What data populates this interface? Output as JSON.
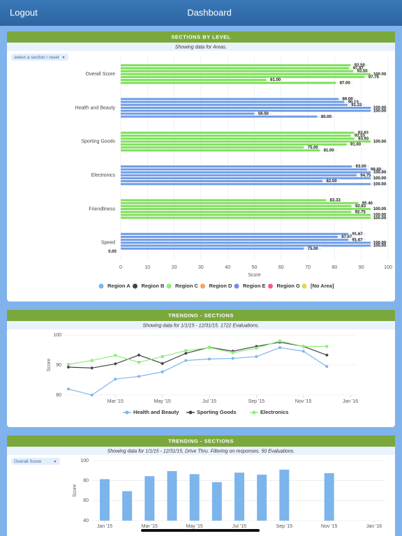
{
  "header": {
    "left_button": "Logout",
    "title": "Dashboard"
  },
  "chart_data": [
    {
      "type": "hbar",
      "title": "SECTIONS BY LEVEL",
      "subtitle": "Showing data for Areas.",
      "selector": "select a section / reset",
      "categories": [
        "Overall Score",
        "Health and Beauty",
        "Sporting Goods",
        "Electronics",
        "Friendliness",
        "Speed"
      ],
      "category_colors": [
        "#7ee05a",
        "#6f9ce6",
        "#7ee05a",
        "#6f9ce6",
        "#7ee05a",
        "#6f9ce6"
      ],
      "series": [
        {
          "name": "Region A",
          "color": "#7cb5ec",
          "values": [
            92.5,
            88,
            93.83,
            93,
            83.33,
            91.67
          ],
          "value_labels": [
            "92.50",
            "88.00",
            "93.83",
            "93.00",
            "83.33",
            "91.67"
          ]
        },
        {
          "name": "Region B",
          "color": "#434348",
          "values": [
            91.97,
            90.13,
            92.53,
            98.6,
            95.4,
            87.67
          ],
          "value_labels": [
            "91.97",
            "90.13",
            "92.53",
            "98.60",
            "95.40",
            "87.67"
          ]
        },
        {
          "name": "Region C",
          "color": "#90ed7d",
          "values": [
            93.5,
            91.33,
            93.93,
            100,
            92.83,
            91.67
          ],
          "value_labels": [
            "93.50",
            "91.33",
            "93.93",
            "100.00",
            "92.83",
            "91.67"
          ]
        },
        {
          "name": "Region D",
          "color": "#f7a35c",
          "values": [
            100,
            100,
            100,
            94.75,
            100,
            100
          ],
          "value_labels": [
            "100.00",
            "100.00",
            "100.00",
            "94.75",
            "100.00",
            "100.00"
          ]
        },
        {
          "name": "Region E",
          "color": "#8085e9",
          "values": [
            97.75,
            100,
            91,
            100,
            92.75,
            100
          ],
          "value_labels": [
            "97.75",
            "100.00",
            "91.00",
            "100.00",
            "92.75",
            "100.00"
          ]
        },
        {
          "name": "Region G",
          "color": "#f15c80",
          "values": [
            61,
            56.5,
            75,
            82,
            100,
            75
          ],
          "value_labels": [
            "61.00",
            "56.50",
            "75.00",
            "82.00",
            "100.00",
            "75.00"
          ]
        },
        {
          "name": "[No Area]",
          "color": "#e4d354",
          "values": [
            87,
            80,
            81,
            100,
            100,
            0
          ],
          "value_labels": [
            "87.00",
            "80.00",
            "81.00",
            "100.00",
            "100.00",
            "0.00"
          ]
        }
      ],
      "xlabel": "Score",
      "xlim": [
        0,
        100
      ],
      "xticks": [
        0,
        10,
        20,
        30,
        40,
        50,
        60,
        70,
        80,
        90,
        100
      ],
      "grid": true,
      "legend": "bottom"
    },
    {
      "type": "line",
      "title": "TRENDING - SECTIONS",
      "subtitle": "Showing data for 1/1/15 - 12/31/15. 1722 Evaluations.",
      "x": [
        "2015-01",
        "2015-02",
        "2015-03",
        "2015-04",
        "2015-05",
        "2015-06",
        "2015-07",
        "2015-08",
        "2015-09",
        "2015-10",
        "2015-11",
        "2015-12"
      ],
      "series": [
        {
          "name": "Health and Beauty",
          "color": "#7cb5ec",
          "values": [
            82,
            80,
            85.3,
            86.2,
            87.7,
            91.5,
            92,
            92.2,
            92.8,
            95.8,
            94.6,
            89.5
          ]
        },
        {
          "name": "Sporting Goods",
          "color": "#434348",
          "values": [
            89.3,
            89,
            90.4,
            93.3,
            90.5,
            93.9,
            95.9,
            94.6,
            96.2,
            97.6,
            96.2,
            93.3
          ]
        },
        {
          "name": "Electronics",
          "color": "#90ed7d",
          "values": [
            90.2,
            91.5,
            93.2,
            90.9,
            92.8,
            94.8,
            95.8,
            94.1,
            95.6,
            98,
            96.2,
            96.2
          ]
        }
      ],
      "ylabel": "Score",
      "ylim": [
        80,
        100
      ],
      "yticks": [
        80,
        90,
        100
      ],
      "xlim": [
        "2015-01",
        "2016-01"
      ],
      "xticks": [
        {
          "value": "2015-03",
          "label": "Mar '15"
        },
        {
          "value": "2015-05",
          "label": "May '15"
        },
        {
          "value": "2015-07",
          "label": "Jul '15"
        },
        {
          "value": "2015-09",
          "label": "Sep '15"
        },
        {
          "value": "2015-11",
          "label": "Nov '15"
        },
        {
          "value": "2016-01",
          "label": "Jan '16"
        }
      ],
      "grid": true,
      "legend": "bottom"
    },
    {
      "type": "bar",
      "title": "TRENDING - SECTIONS",
      "subtitle": "Showing data for 1/1/15 - 12/31/15, Drive Thru. Filtering on responses. 50 Evaluations.",
      "selector": "Overall Score",
      "x": [
        "2015-01",
        "2015-02",
        "2015-03",
        "2015-04",
        "2015-05",
        "2015-06",
        "2015-07",
        "2015-08",
        "2015-09",
        "2015-10",
        "2015-11",
        "2015-12"
      ],
      "values": [
        81.5,
        69.5,
        84.5,
        89.5,
        86.5,
        78.5,
        88,
        86,
        91,
        null,
        87.5,
        null
      ],
      "color": "#7cb5ec",
      "ylabel": "Score",
      "ylim": [
        40,
        100
      ],
      "yticks": [
        40,
        60,
        80,
        100
      ],
      "xlim": [
        "2015-01",
        "2016-01"
      ],
      "xticks": [
        {
          "value": "2015-01",
          "label": "Jan '15"
        },
        {
          "value": "2015-03",
          "label": "Mar '15"
        },
        {
          "value": "2015-05",
          "label": "May '15"
        },
        {
          "value": "2015-07",
          "label": "Jul '15"
        },
        {
          "value": "2015-09",
          "label": "Sep '15"
        },
        {
          "value": "2015-11",
          "label": "Nov '15"
        },
        {
          "value": "2016-01",
          "label": "Jan '16"
        }
      ],
      "grid": true
    }
  ]
}
